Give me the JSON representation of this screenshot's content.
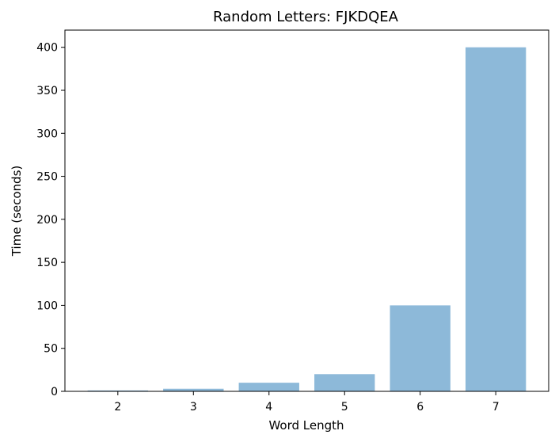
{
  "chart_data": {
    "type": "bar",
    "title": "Random Letters: FJKDQEA",
    "xlabel": "Word Length",
    "ylabel": "Time (seconds)",
    "categories": [
      "2",
      "3",
      "4",
      "5",
      "6",
      "7"
    ],
    "values": [
      1,
      3,
      10,
      20,
      100,
      400
    ],
    "ylim": [
      0,
      420
    ],
    "yticks": [
      0,
      50,
      100,
      150,
      200,
      250,
      300,
      350,
      400
    ],
    "bar_color": "#8db9d9",
    "grid": false,
    "legend": "none"
  }
}
